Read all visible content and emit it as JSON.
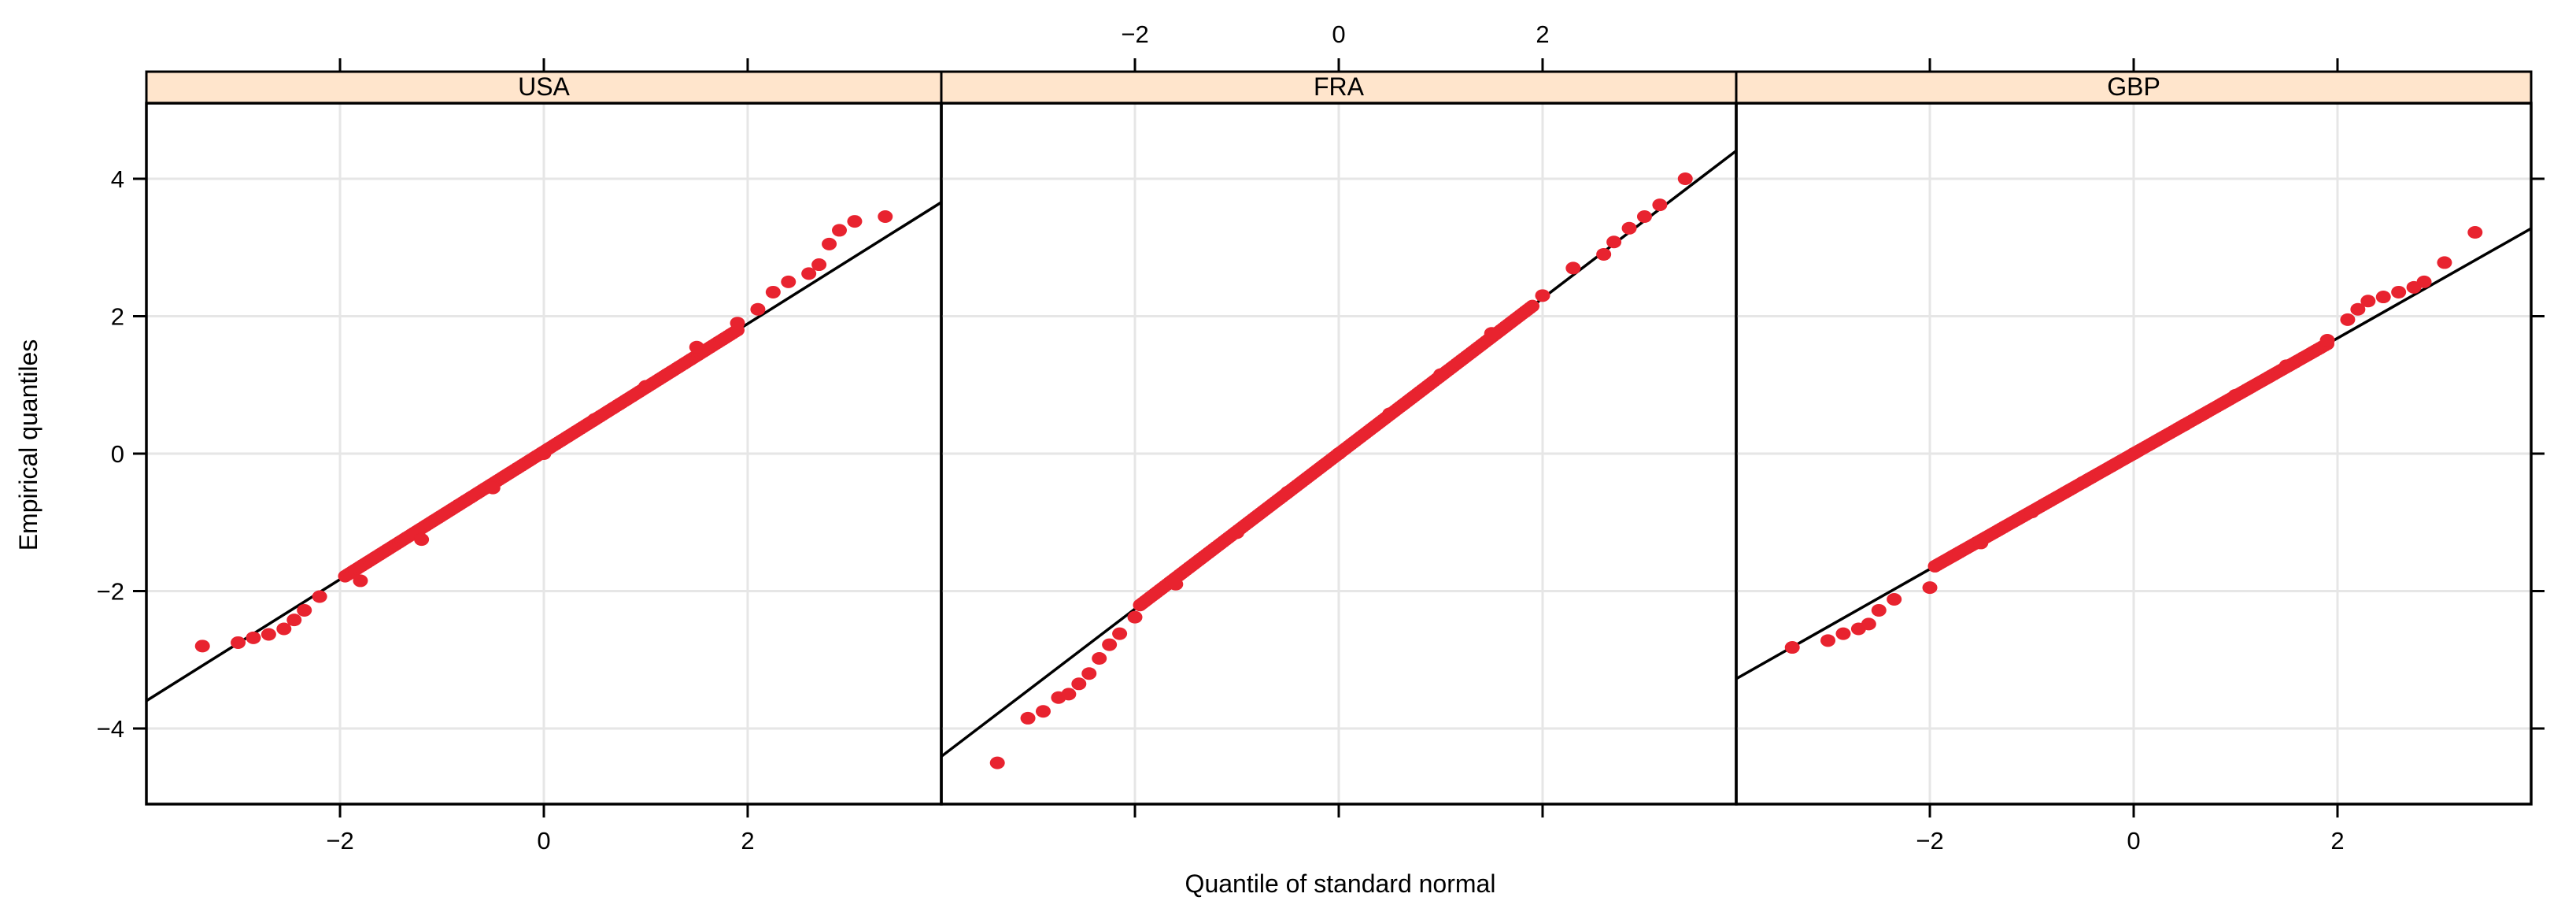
{
  "chart_data": {
    "type": "scatter",
    "subtype": "normal-qq-plot",
    "xlabel": "Quantile of standard normal",
    "ylabel": "Empirical quantiles",
    "xlim": [
      -3.9,
      3.9
    ],
    "ylim": [
      -5.1,
      5.1
    ],
    "x_ticks": [
      -2,
      0,
      2
    ],
    "y_ticks": [
      -4,
      -2,
      0,
      2,
      4
    ],
    "x_tick_labels": [
      "−2",
      "0",
      "2"
    ],
    "y_tick_labels": [
      "−4",
      "−2",
      "0",
      "2",
      "4"
    ],
    "grid": true,
    "layout": "3 panels side by side",
    "colors": {
      "points": "#e8232f",
      "reference_line": "#000000",
      "strip_background": "#ffe5cc",
      "grid": "#e6e6e6",
      "frame": "#000000"
    },
    "panels": [
      {
        "name": "USA",
        "reference_line": {
          "slope": 0.93,
          "intercept": 0.03
        },
        "points": [
          [
            -3.35,
            -2.8
          ],
          [
            -3.0,
            -2.75
          ],
          [
            -2.85,
            -2.68
          ],
          [
            -2.7,
            -2.63
          ],
          [
            -2.55,
            -2.55
          ],
          [
            -2.45,
            -2.42
          ],
          [
            -2.35,
            -2.28
          ],
          [
            -2.2,
            -2.08
          ],
          [
            -1.8,
            -1.85
          ],
          [
            -1.2,
            -1.25
          ],
          [
            -0.5,
            -0.5
          ],
          [
            0.0,
            0.0
          ],
          [
            0.5,
            0.5
          ],
          [
            1.0,
            0.98
          ],
          [
            1.5,
            1.55
          ],
          [
            1.9,
            1.9
          ],
          [
            2.1,
            2.1
          ],
          [
            2.25,
            2.35
          ],
          [
            2.4,
            2.5
          ],
          [
            2.6,
            2.62
          ],
          [
            2.7,
            2.75
          ],
          [
            2.8,
            3.05
          ],
          [
            2.9,
            3.25
          ],
          [
            3.05,
            3.38
          ],
          [
            3.35,
            3.45
          ]
        ]
      },
      {
        "name": "FRA",
        "reference_line": {
          "slope": 1.13,
          "intercept": 0.0
        },
        "points": [
          [
            -3.35,
            -4.5
          ],
          [
            -3.05,
            -3.85
          ],
          [
            -2.9,
            -3.75
          ],
          [
            -2.75,
            -3.55
          ],
          [
            -2.65,
            -3.5
          ],
          [
            -2.55,
            -3.35
          ],
          [
            -2.45,
            -3.2
          ],
          [
            -2.35,
            -2.98
          ],
          [
            -2.25,
            -2.78
          ],
          [
            -2.15,
            -2.62
          ],
          [
            -2.0,
            -2.38
          ],
          [
            -1.6,
            -1.9
          ],
          [
            -1.0,
            -1.15
          ],
          [
            -0.5,
            -0.56
          ],
          [
            0.0,
            0.0
          ],
          [
            0.5,
            0.58
          ],
          [
            1.0,
            1.15
          ],
          [
            1.5,
            1.75
          ],
          [
            2.0,
            2.3
          ],
          [
            2.3,
            2.7
          ],
          [
            2.6,
            2.9
          ],
          [
            2.7,
            3.08
          ],
          [
            2.85,
            3.28
          ],
          [
            3.0,
            3.45
          ],
          [
            3.15,
            3.62
          ],
          [
            3.4,
            4.0
          ]
        ]
      },
      {
        "name": "GBP",
        "reference_line": {
          "slope": 0.84,
          "intercept": 0.0
        },
        "points": [
          [
            -3.35,
            -2.82
          ],
          [
            -3.0,
            -2.72
          ],
          [
            -2.85,
            -2.62
          ],
          [
            -2.7,
            -2.55
          ],
          [
            -2.6,
            -2.48
          ],
          [
            -2.5,
            -2.28
          ],
          [
            -2.35,
            -2.12
          ],
          [
            -2.0,
            -1.95
          ],
          [
            -1.5,
            -1.3
          ],
          [
            -1.0,
            -0.85
          ],
          [
            -0.5,
            -0.42
          ],
          [
            0.0,
            0.0
          ],
          [
            0.5,
            0.42
          ],
          [
            1.0,
            0.85
          ],
          [
            1.5,
            1.28
          ],
          [
            1.9,
            1.65
          ],
          [
            2.1,
            1.95
          ],
          [
            2.2,
            2.1
          ],
          [
            2.3,
            2.22
          ],
          [
            2.45,
            2.28
          ],
          [
            2.6,
            2.35
          ],
          [
            2.75,
            2.42
          ],
          [
            2.85,
            2.5
          ],
          [
            3.05,
            2.78
          ],
          [
            3.35,
            3.22
          ]
        ]
      }
    ]
  }
}
